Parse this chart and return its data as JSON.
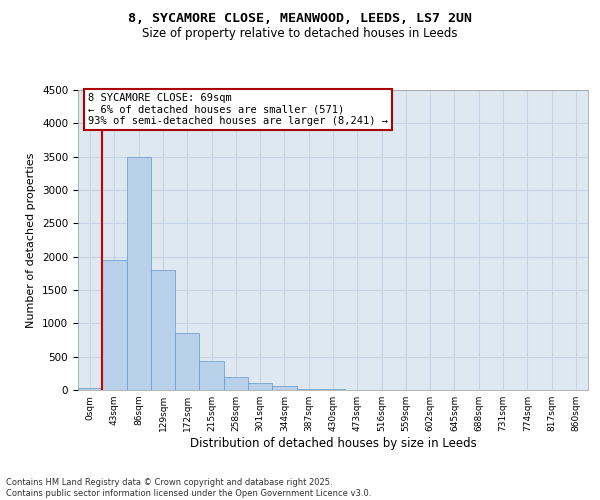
{
  "title_line1": "8, SYCAMORE CLOSE, MEANWOOD, LEEDS, LS7 2UN",
  "title_line2": "Size of property relative to detached houses in Leeds",
  "xlabel": "Distribution of detached houses by size in Leeds",
  "ylabel": "Number of detached properties",
  "bar_labels": [
    "0sqm",
    "43sqm",
    "86sqm",
    "129sqm",
    "172sqm",
    "215sqm",
    "258sqm",
    "301sqm",
    "344sqm",
    "387sqm",
    "430sqm",
    "473sqm",
    "516sqm",
    "559sqm",
    "602sqm",
    "645sqm",
    "688sqm",
    "731sqm",
    "774sqm",
    "817sqm",
    "860sqm"
  ],
  "bar_values": [
    30,
    1950,
    3500,
    1800,
    850,
    430,
    200,
    100,
    55,
    20,
    10,
    0,
    0,
    0,
    0,
    0,
    0,
    0,
    0,
    0,
    0
  ],
  "bar_color": "#b8d0ea",
  "bar_edge_color": "#6699cc",
  "vline_x": 1.0,
  "vline_color": "#cc0000",
  "ylim": [
    0,
    4500
  ],
  "yticks": [
    0,
    500,
    1000,
    1500,
    2000,
    2500,
    3000,
    3500,
    4000,
    4500
  ],
  "annotation_title": "8 SYCAMORE CLOSE: 69sqm",
  "annotation_line1": "← 6% of detached houses are smaller (571)",
  "annotation_line2": "93% of semi-detached houses are larger (8,241) →",
  "annotation_box_color": "#aa0000",
  "grid_color": "#c5d5e5",
  "bg_color": "#dde8f0",
  "footer_line1": "Contains HM Land Registry data © Crown copyright and database right 2025.",
  "footer_line2": "Contains public sector information licensed under the Open Government Licence v3.0."
}
